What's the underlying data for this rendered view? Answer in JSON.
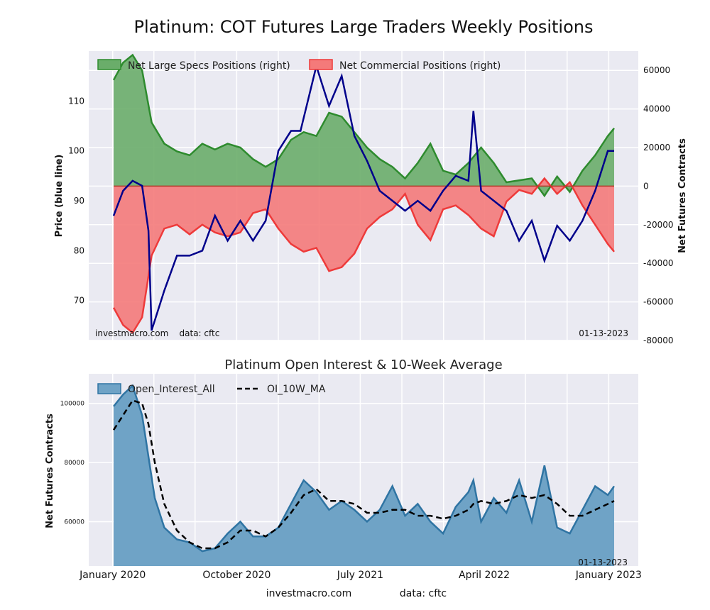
{
  "title": "Platinum: COT Futures Large Traders Weekly Positions",
  "bg_color": "#eaeaf2",
  "top": {
    "ylabel_left": "Price (blue line)",
    "ylabel_right": "Net Futures Contracts",
    "legend": [
      "Net Large Specs Positions (right)",
      "Net Commercial Positions (right)"
    ],
    "footer_left": "investmacro.com    data: cftc",
    "footer_right": "01-13-2023",
    "left_ticks": [
      "70",
      "80",
      "90",
      "100",
      "110"
    ],
    "right_ticks": [
      "-80000",
      "-60000",
      "-40000",
      "-20000",
      "0",
      "20000",
      "40000",
      "60000"
    ]
  },
  "bottom": {
    "title": "Platinum Open Interest & 10-Week Average",
    "ylabel": "Net Futures Contracts",
    "legend": [
      "Open_Interest_All",
      "OI_10W_MA"
    ],
    "footer_right": "01-13-2023",
    "y_ticks": [
      "60000",
      "80000",
      "100000"
    ]
  },
  "x_ticks": [
    "January 2020",
    "October 2020",
    "July 2021",
    "April 2022",
    "January 2023"
  ],
  "footer": {
    "left": "investmacro.com",
    "right": "data: cftc"
  },
  "colors": {
    "specs_fill": "#6aad6a",
    "specs_line": "#2e8b2e",
    "comm_fill": "#f47a7a",
    "comm_line": "#ee3a3a",
    "price_line": "#00008b",
    "oi_fill": "#6fa3c6",
    "oi_line": "#2f74a3",
    "ma_line": "#000000"
  },
  "chart_data": [
    {
      "type": "area",
      "x": [
        "2020-01-03",
        "2020-01-24",
        "2020-02-14",
        "2020-03-06",
        "2020-03-27",
        "2020-04-24",
        "2020-05-22",
        "2020-06-19",
        "2020-07-17",
        "2020-08-14",
        "2020-09-11",
        "2020-10-09",
        "2020-11-06",
        "2020-12-04",
        "2021-01-01",
        "2021-01-29",
        "2021-02-26",
        "2021-03-26",
        "2021-04-23",
        "2021-05-21",
        "2021-06-18",
        "2021-07-16",
        "2021-08-13",
        "2021-09-10",
        "2021-10-08",
        "2021-11-05",
        "2021-12-03",
        "2021-12-31",
        "2022-01-28",
        "2022-02-25",
        "2022-03-25",
        "2022-04-22",
        "2022-05-20",
        "2022-06-17",
        "2022-07-15",
        "2022-08-12",
        "2022-09-09",
        "2022-10-07",
        "2022-11-04",
        "2022-12-02",
        "2022-12-30",
        "2023-01-13"
      ],
      "series": [
        {
          "name": "Net Large Specs Positions (right)",
          "values": [
            55000,
            64000,
            68000,
            60000,
            33000,
            22000,
            18000,
            16000,
            22000,
            19000,
            22000,
            20000,
            14000,
            10000,
            14000,
            24000,
            28000,
            26000,
            38000,
            36000,
            28000,
            20000,
            14000,
            10000,
            4000,
            12000,
            22000,
            8000,
            6000,
            12000,
            20000,
            12000,
            2000,
            3000,
            4000,
            -5000,
            5000,
            -3000,
            8000,
            16000,
            26000,
            30000
          ]
        },
        {
          "name": "Net Commercial Positions (right)",
          "values": [
            -63000,
            -72000,
            -76000,
            -68000,
            -36000,
            -22000,
            -20000,
            -25000,
            -20000,
            -24000,
            -26000,
            -24000,
            -14000,
            -12000,
            -22000,
            -30000,
            -34000,
            -32000,
            -44000,
            -42000,
            -35000,
            -22000,
            -16000,
            -12000,
            -4000,
            -20000,
            -28000,
            -12000,
            -10000,
            -15000,
            -22000,
            -26000,
            -8000,
            -2000,
            -4000,
            4000,
            -4000,
            2000,
            -10000,
            -20000,
            -30000,
            -34000
          ]
        }
      ],
      "right_ylim": [
        -80000,
        70000
      ]
    },
    {
      "type": "line",
      "x": [
        "2020-01-03",
        "2020-01-24",
        "2020-02-14",
        "2020-03-06",
        "2020-03-20",
        "2020-03-27",
        "2020-04-24",
        "2020-05-22",
        "2020-06-19",
        "2020-07-17",
        "2020-08-14",
        "2020-09-11",
        "2020-10-09",
        "2020-11-06",
        "2020-12-04",
        "2021-01-01",
        "2021-01-29",
        "2021-02-19",
        "2021-03-26",
        "2021-04-23",
        "2021-05-21",
        "2021-06-18",
        "2021-07-16",
        "2021-08-13",
        "2021-09-10",
        "2021-10-08",
        "2021-11-05",
        "2021-12-03",
        "2021-12-31",
        "2022-01-28",
        "2022-02-25",
        "2022-03-08",
        "2022-03-25",
        "2022-04-22",
        "2022-05-20",
        "2022-06-17",
        "2022-07-15",
        "2022-08-12",
        "2022-09-09",
        "2022-10-07",
        "2022-11-04",
        "2022-12-02",
        "2022-12-30",
        "2023-01-13"
      ],
      "series": [
        {
          "name": "Price (blue line)",
          "values": [
            87,
            92,
            94,
            93,
            84,
            64,
            72,
            79,
            79,
            80,
            87,
            82,
            86,
            82,
            86,
            100,
            104,
            104,
            117,
            109,
            115,
            103,
            98,
            92,
            90,
            88,
            90,
            88,
            92,
            95,
            94,
            108,
            92,
            90,
            88,
            82,
            86,
            78,
            85,
            82,
            86,
            92,
            100,
            100
          ]
        }
      ],
      "left_ylim": [
        62,
        120
      ]
    },
    {
      "type": "area",
      "title": "Platinum Open Interest & 10-Week Average",
      "x": [
        "2020-01-03",
        "2020-01-24",
        "2020-02-14",
        "2020-03-06",
        "2020-03-20",
        "2020-04-03",
        "2020-04-24",
        "2020-05-22",
        "2020-06-19",
        "2020-07-17",
        "2020-08-14",
        "2020-09-11",
        "2020-10-09",
        "2020-11-06",
        "2020-12-04",
        "2021-01-01",
        "2021-01-29",
        "2021-02-26",
        "2021-03-26",
        "2021-04-23",
        "2021-05-21",
        "2021-06-18",
        "2021-07-16",
        "2021-08-13",
        "2021-09-10",
        "2021-10-08",
        "2021-11-05",
        "2021-12-03",
        "2021-12-31",
        "2022-01-28",
        "2022-02-25",
        "2022-03-08",
        "2022-03-25",
        "2022-04-22",
        "2022-05-20",
        "2022-06-17",
        "2022-07-15",
        "2022-08-12",
        "2022-09-09",
        "2022-10-07",
        "2022-11-04",
        "2022-12-02",
        "2022-12-30",
        "2023-01-13"
      ],
      "series": [
        {
          "name": "Open_Interest_All",
          "values": [
            99000,
            103000,
            106000,
            96000,
            82000,
            68000,
            58000,
            54000,
            53000,
            50000,
            51000,
            56000,
            60000,
            55000,
            55000,
            58000,
            66000,
            74000,
            70000,
            64000,
            67000,
            64000,
            60000,
            64000,
            72000,
            62000,
            66000,
            60000,
            56000,
            65000,
            70000,
            74000,
            60000,
            68000,
            63000,
            74000,
            60000,
            79000,
            58000,
            56000,
            64000,
            72000,
            69000,
            72000
          ]
        },
        {
          "name": "OI_10W_MA",
          "values": [
            91000,
            96000,
            101000,
            100000,
            93000,
            80000,
            66000,
            57000,
            53000,
            51000,
            51000,
            53000,
            57000,
            57000,
            55000,
            58000,
            63000,
            69000,
            71000,
            67000,
            67000,
            66000,
            63000,
            63000,
            64000,
            64000,
            62000,
            62000,
            61000,
            62000,
            64000,
            66000,
            67000,
            66000,
            67000,
            69000,
            68000,
            69000,
            66000,
            62000,
            62000,
            64000,
            66000,
            67000
          ]
        }
      ],
      "ylim": [
        45000,
        110000
      ]
    }
  ]
}
